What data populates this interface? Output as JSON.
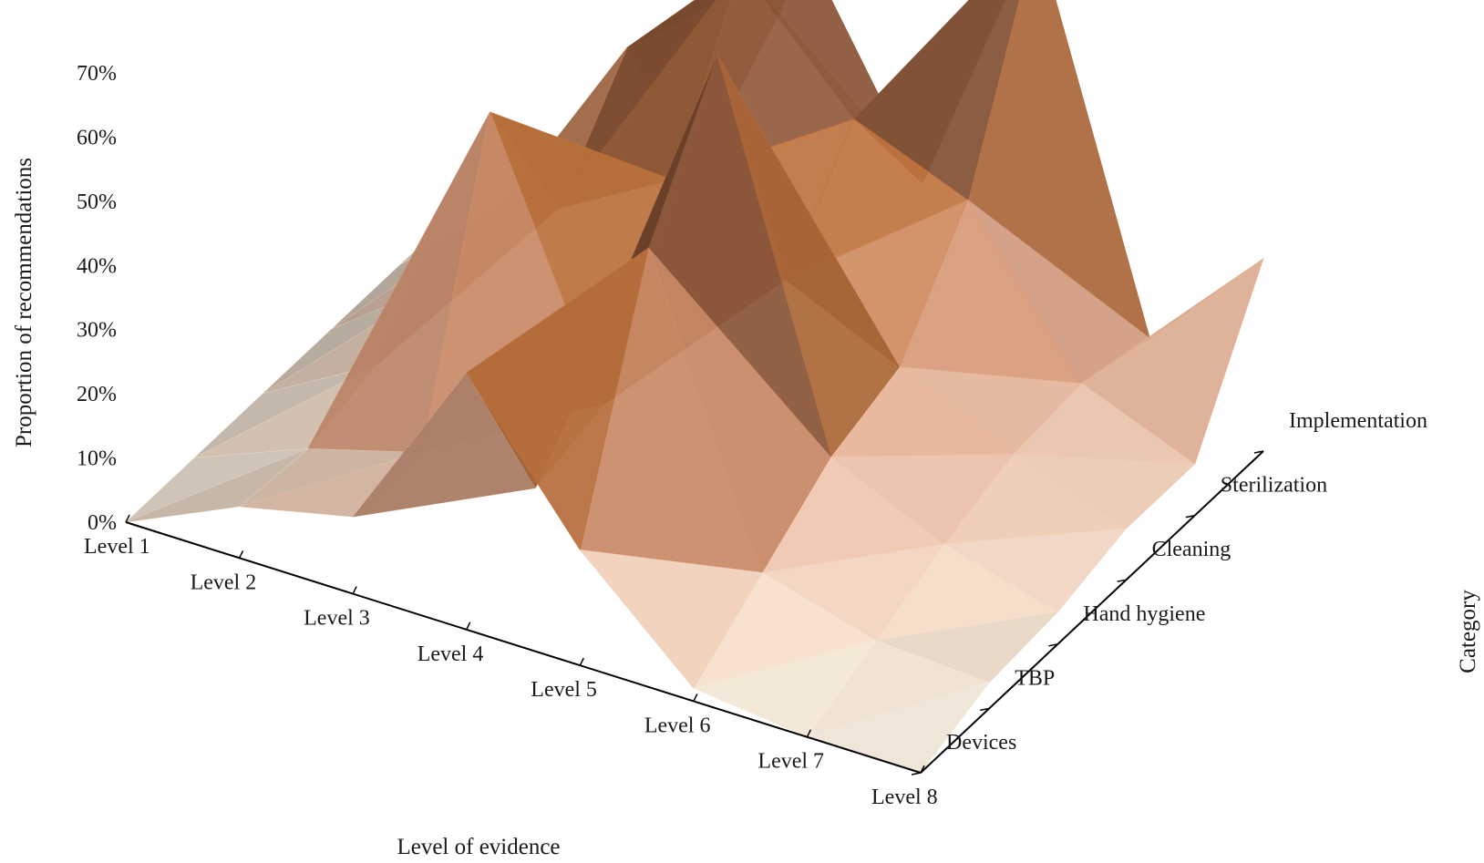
{
  "chart_data": {
    "type": "surface3d",
    "x_axis": {
      "title": "Level of evidence",
      "categories": [
        "Level 1",
        "Level 2",
        "Level 3",
        "Level 4",
        "Level 5",
        "Level 6",
        "Level 7",
        "Level 8"
      ]
    },
    "y_axis": {
      "title": "Category",
      "categories": [
        "Devices",
        "TBP",
        "Hand hygiene",
        "Cleaning",
        "Sterilization",
        "Implementation"
      ]
    },
    "z_axis": {
      "title": "Proportion of recommendations",
      "ticks": [
        "0%",
        "10%",
        "20%",
        "30%",
        "40%",
        "50%",
        "60%",
        "70%"
      ],
      "range": [
        0,
        70
      ]
    },
    "z_values_percent": [
      [
        0,
        8,
        12,
        40,
        18,
        2,
        0,
        0
      ],
      [
        0,
        7,
        12,
        12,
        55,
        10,
        5,
        4
      ],
      [
        0,
        10,
        55,
        15,
        75,
        18,
        10,
        5
      ],
      [
        0,
        13,
        30,
        40,
        30,
        22,
        14,
        8
      ],
      [
        0,
        15,
        45,
        63,
        45,
        38,
        15,
        8
      ],
      [
        0,
        10,
        15,
        55,
        25,
        70,
        12,
        30
      ]
    ],
    "colormap": [
      "#fff8e8",
      "#f0c8b0",
      "#e0a080",
      "#c87840",
      "#9a6040",
      "#5a3a28"
    ]
  }
}
